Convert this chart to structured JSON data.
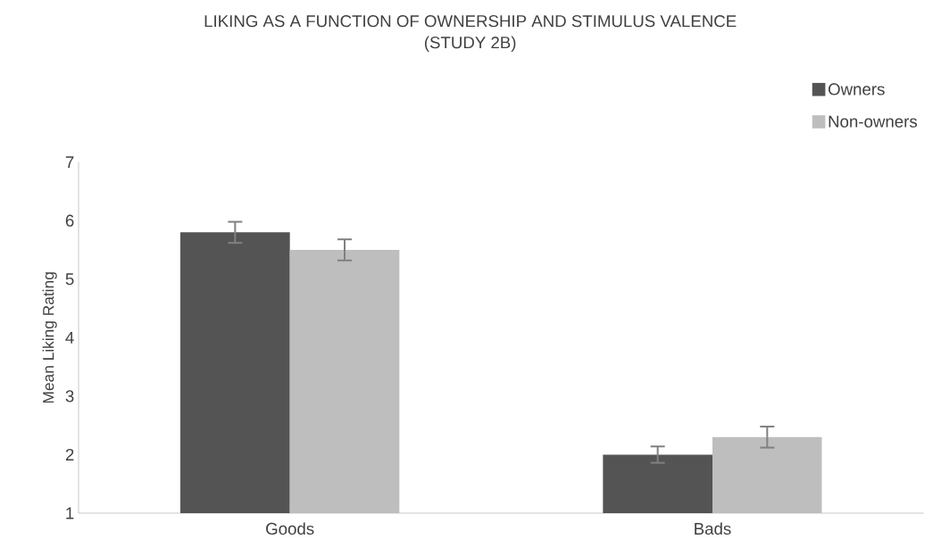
{
  "chart_data": {
    "type": "bar",
    "title": "LIKING AS A FUNCTION OF OWNERSHIP AND STIMULUS VALENCE (STUDY 2B)",
    "ylabel": "Mean Liking Rating",
    "categories": [
      "Goods",
      "Bads"
    ],
    "series": [
      {
        "name": "Owners",
        "color": "#545454",
        "values": [
          5.8,
          2.0
        ],
        "errors": [
          0.18,
          0.14
        ]
      },
      {
        "name": "Non-owners",
        "color": "#bebebe",
        "values": [
          5.5,
          2.3
        ],
        "errors": [
          0.18,
          0.18
        ]
      }
    ],
    "ylim": [
      1,
      7
    ],
    "yticks": [
      1,
      2,
      3,
      4,
      5,
      6,
      7
    ],
    "grid": false,
    "legend": "top right"
  }
}
